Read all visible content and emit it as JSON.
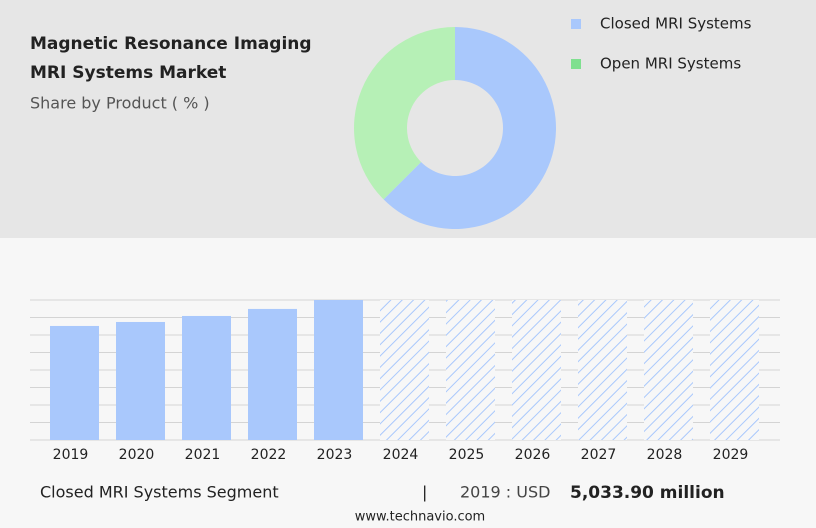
{
  "header": {
    "title_lines": [
      "Magnetic Resonance Imaging",
      "MRI Systems Market"
    ],
    "subtitle": "Share by Product ( % )"
  },
  "chart_data": [
    {
      "type": "donut",
      "categories": [
        "Closed MRI Systems",
        "Open MRI Systems"
      ],
      "values": [
        62.5,
        37.5
      ],
      "colors": [
        "#a9c8fc",
        "#b6f0b6"
      ],
      "legend_colors": [
        "#a9c8fc",
        "#7fe08f"
      ]
    },
    {
      "type": "bar",
      "categories": [
        "2019",
        "2020",
        "2021",
        "2022",
        "2023",
        "2024",
        "2025",
        "2026",
        "2027",
        "2028",
        "2029"
      ],
      "values": [
        5033.9,
        5210,
        5475,
        5785,
        6180,
        null,
        null,
        null,
        null,
        null,
        null
      ],
      "color": "#a9c8fc",
      "ylim": [
        0,
        6180
      ]
    }
  ],
  "footer": {
    "segment": "Closed MRI Systems Segment",
    "separator": "|",
    "year_label": "2019 : USD",
    "value_label": "5,033.90 million",
    "source": "www.technavio.com"
  }
}
